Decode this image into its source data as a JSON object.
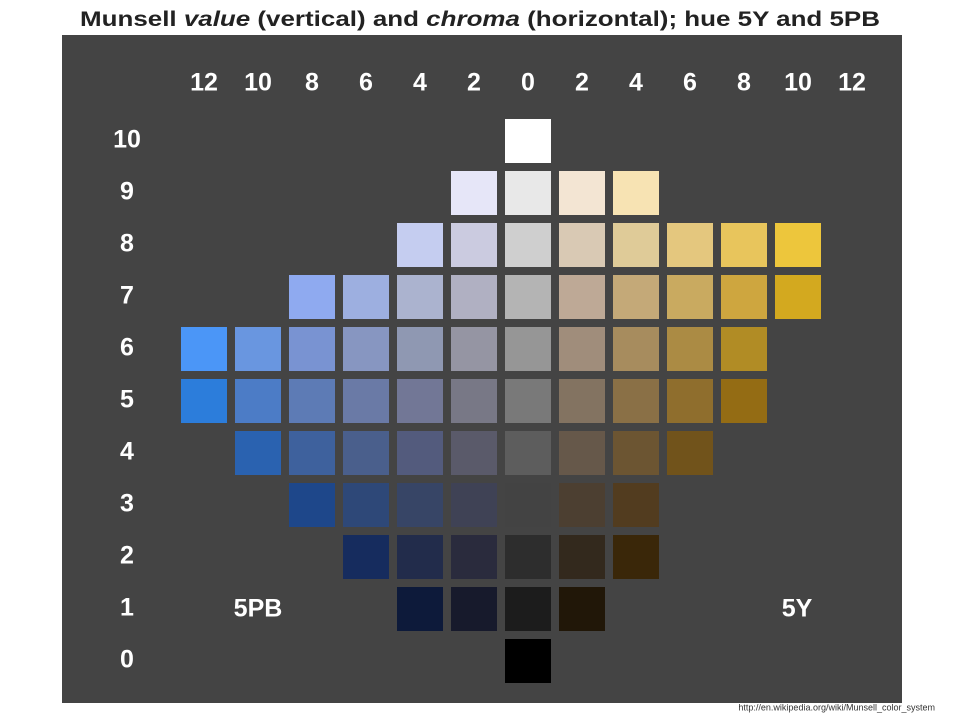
{
  "header": {
    "title": [
      "Munsell ",
      "value",
      " (vertical) and ",
      "chroma",
      " (horizontal); hue 5Y and 5PB"
    ]
  },
  "column_labels": [
    "12",
    "10",
    "8",
    "6",
    "4",
    "2",
    "0",
    "2",
    "4",
    "6",
    "8",
    "10",
    "12"
  ],
  "row_labels": [
    "10",
    "9",
    "8",
    "7",
    "6",
    "5",
    "4",
    "3",
    "2",
    "1",
    "0"
  ],
  "hue_labels": {
    "left": "5PB",
    "right": "5Y"
  },
  "swatches": [
    [
      null,
      null,
      null,
      null,
      null,
      null,
      "#ffffff",
      null,
      null,
      null,
      null,
      null,
      null
    ],
    [
      null,
      null,
      null,
      null,
      null,
      "#e6e6f8",
      "#e8e8e8",
      "#f3e5d3",
      "#f7e3b3",
      null,
      null,
      null,
      null
    ],
    [
      null,
      null,
      null,
      null,
      "#c5cdf0",
      "#cbcbe0",
      "#cfcfcf",
      "#d9c9b4",
      "#dfcb98",
      "#e4c77e",
      "#e8c55c",
      "#edc63c",
      null
    ],
    [
      null,
      null,
      "#8faaf0",
      "#9dafe0",
      "#abb3cf",
      "#b0b0c2",
      "#b4b4b4",
      "#bea996",
      "#c4a978",
      "#c9aa60",
      "#cea63f",
      "#d3a91f",
      null
    ],
    [
      "#4b96f7",
      "#6996e0",
      "#7993d2",
      "#8796c1",
      "#8f98b2",
      "#9595a3",
      "#969696",
      "#a08d7b",
      "#a78c5e",
      "#ab8b44",
      "#b18c25",
      null,
      null
    ],
    [
      "#2c7ddb",
      "#4c7cc6",
      "#5d7bb5",
      "#6a7aa6",
      "#727796",
      "#787886",
      "#797979",
      "#837361",
      "#8a7046",
      "#8f6e2d",
      "#946c14",
      null,
      null
    ],
    [
      null,
      "#2a62b0",
      "#3e619d",
      "#4a5f8c",
      "#535b7d",
      "#5a5a6a",
      "#5d5d5d",
      "#66584a",
      "#6c5532",
      "#71531b",
      null,
      null,
      null
    ],
    [
      null,
      null,
      "#1e478a",
      "#2e4878",
      "#374566",
      "#3f4255",
      "#434343",
      "#4c3f31",
      "#523c1f",
      null,
      null,
      null,
      null
    ],
    [
      null,
      null,
      null,
      "#162c5e",
      "#222c4b",
      "#2a2b3d",
      "#2d2d2d",
      "#33291d",
      "#3a2709",
      null,
      null,
      null,
      null
    ],
    [
      null,
      null,
      null,
      null,
      "#0d1a3a",
      "#171a2c",
      "#1c1c1c",
      "#211708",
      null,
      null,
      null,
      null,
      null
    ],
    [
      null,
      null,
      null,
      null,
      null,
      null,
      "#000000",
      null,
      null,
      null,
      null,
      null,
      null
    ]
  ],
  "footer": {
    "source": "http://en.wikipedia.org/wiki/Munsell_color_system"
  }
}
